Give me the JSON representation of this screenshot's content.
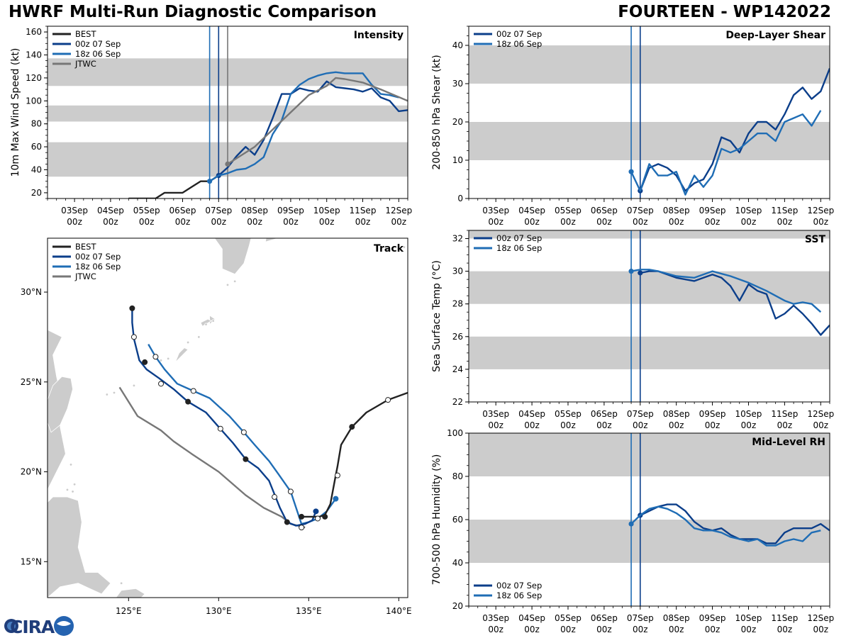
{
  "header": {
    "title_left": "HWRF Multi-Run Diagnostic Comparison",
    "title_right": "FOURTEEN - WP142022"
  },
  "colors": {
    "best": "#222222",
    "run00z": "#0b3e8a",
    "run18z": "#1f6db5",
    "jtwc": "#777777",
    "band": "#cccccc",
    "land": "#cccccc"
  },
  "time_axis": {
    "tick_labels": [
      "03Sep",
      "04Sep",
      "05Sep",
      "06Sep",
      "07Sep",
      "08Sep",
      "09Sep",
      "10Sep",
      "11Sep",
      "12Sep"
    ],
    "tick_sublabel": "00z"
  },
  "chart_data": [
    {
      "id": "intensity",
      "type": "line",
      "title": "Intensity",
      "ylabel": "10m Max Wind Speed (kt)",
      "ylim": [
        15,
        165
      ],
      "yticks": [
        20,
        40,
        60,
        80,
        100,
        120,
        140,
        160
      ],
      "xlim_days": [
        -4.75,
        5.25
      ],
      "bands": [
        [
          34,
          64
        ],
        [
          82,
          96
        ],
        [
          113,
          137
        ]
      ],
      "vlines": [
        {
          "day": -0.25,
          "series": "18z 06 Sep"
        },
        {
          "day": 0,
          "series": "00z 07 Sep"
        },
        {
          "day": 0.25,
          "series": "JTWC"
        }
      ],
      "legend": [
        "BEST",
        "00z 07 Sep",
        "18z 06 Sep",
        "JTWC"
      ],
      "series": [
        {
          "name": "BEST",
          "color_key": "best",
          "x": [
            -2.5,
            -2.25,
            -2,
            -1.75,
            -1.5,
            -1.25,
            -1,
            -0.75,
            -0.5,
            -0.25,
            0
          ],
          "y": [
            15,
            15,
            15,
            15,
            20,
            20,
            20,
            25,
            30,
            30,
            35
          ]
        },
        {
          "name": "00z 07 Sep",
          "color_key": "run00z",
          "marker_day": 0,
          "x": [
            0,
            0.25,
            0.5,
            0.75,
            1,
            1.25,
            1.5,
            1.75,
            2,
            2.25,
            2.5,
            2.75,
            3,
            3.25,
            3.5,
            3.75,
            4,
            4.25,
            4.5,
            4.75,
            5,
            5.25
          ],
          "y": [
            35,
            42,
            52,
            60,
            53,
            66,
            85,
            106,
            106,
            111,
            109,
            108,
            117,
            112,
            111,
            110,
            108,
            111,
            103,
            100,
            91,
            92
          ]
        },
        {
          "name": "18z 06 Sep",
          "color_key": "run18z",
          "marker_day": -0.25,
          "x": [
            -0.25,
            0,
            0.25,
            0.5,
            0.75,
            1,
            1.25,
            1.5,
            1.75,
            2,
            2.25,
            2.5,
            2.75,
            3,
            3.25,
            3.5,
            3.75,
            4,
            4.25,
            4.5,
            4.75,
            5
          ],
          "y": [
            30,
            35,
            37,
            40,
            41,
            45,
            51,
            71,
            83,
            106,
            114,
            119,
            122,
            124,
            125,
            124,
            124,
            124,
            114,
            106,
            105,
            103
          ]
        },
        {
          "name": "JTWC",
          "color_key": "jtwc",
          "marker_day": 0.25,
          "x": [
            0.25,
            0.5,
            1,
            1.5,
            2,
            2.5,
            3,
            3.25,
            3.5,
            4,
            4.5,
            5.25
          ],
          "y": [
            45,
            50,
            60,
            75,
            90,
            105,
            113,
            120,
            119,
            116,
            110,
            100
          ]
        }
      ]
    },
    {
      "id": "shear",
      "type": "line",
      "title": "Deep-Layer Shear",
      "ylabel": "200-850 hPa Shear (kt)",
      "ylim": [
        0,
        45
      ],
      "yticks": [
        0,
        10,
        20,
        30,
        40
      ],
      "xlim_days": [
        -4.75,
        5.25
      ],
      "bands": [
        [
          10,
          20
        ],
        [
          30,
          40
        ]
      ],
      "vlines": [
        {
          "day": -0.25,
          "series": "18z 06 Sep"
        },
        {
          "day": 0,
          "series": "00z 07 Sep"
        }
      ],
      "legend": [
        "00z 07 Sep",
        "18z 06 Sep"
      ],
      "series": [
        {
          "name": "00z 07 Sep",
          "color_key": "run00z",
          "marker_day": 0,
          "x": [
            0,
            0.25,
            0.5,
            0.75,
            1,
            1.25,
            1.5,
            1.75,
            2,
            2.25,
            2.5,
            2.75,
            3,
            3.25,
            3.5,
            3.75,
            4,
            4.25,
            4.5,
            4.75,
            5,
            5.25
          ],
          "y": [
            2,
            8,
            9,
            8,
            6,
            2,
            4,
            5,
            9,
            16,
            15,
            12,
            17,
            20,
            20,
            18,
            22,
            27,
            29,
            26,
            28,
            34
          ]
        },
        {
          "name": "18z 06 Sep",
          "color_key": "run18z",
          "marker_day": -0.25,
          "x": [
            -0.25,
            0,
            0.25,
            0.5,
            0.75,
            1,
            1.25,
            1.5,
            1.75,
            2,
            2.25,
            2.5,
            2.75,
            3,
            3.25,
            3.5,
            3.75,
            4,
            4.25,
            4.5,
            4.75,
            5
          ],
          "y": [
            7,
            2,
            9,
            6,
            6,
            7,
            1,
            6,
            3,
            6,
            13,
            12,
            13,
            15,
            17,
            17,
            15,
            20,
            21,
            22,
            19,
            23
          ]
        }
      ]
    },
    {
      "id": "sst",
      "type": "line",
      "title": "SST",
      "ylabel": "Sea Surface Temp (°C)",
      "ylim": [
        22,
        32.5
      ],
      "yticks": [
        22,
        24,
        26,
        28,
        30,
        32
      ],
      "xlim_days": [
        -4.75,
        5.25
      ],
      "bands": [
        [
          24,
          26
        ],
        [
          28,
          30
        ],
        [
          32,
          32.5
        ]
      ],
      "vlines": [
        {
          "day": -0.25,
          "series": "18z 06 Sep"
        },
        {
          "day": 0,
          "series": "00z 07 Sep"
        }
      ],
      "legend": [
        "00z 07 Sep",
        "18z 06 Sep"
      ],
      "series": [
        {
          "name": "00z 07 Sep",
          "color_key": "run00z",
          "marker_day": 0,
          "x": [
            0,
            0.25,
            0.5,
            1,
            1.5,
            2,
            2.25,
            2.5,
            2.75,
            3,
            3.25,
            3.5,
            3.75,
            4,
            4.25,
            4.5,
            4.75,
            5,
            5.25
          ],
          "y": [
            29.9,
            30.0,
            30.0,
            29.6,
            29.4,
            29.8,
            29.6,
            29.1,
            28.2,
            29.2,
            28.8,
            28.6,
            27.1,
            27.4,
            27.9,
            27.4,
            26.8,
            26.1,
            26.7
          ]
        },
        {
          "name": "18z 06 Sep",
          "color_key": "run18z",
          "marker_day": -0.25,
          "x": [
            -0.25,
            0,
            0.25,
            0.5,
            1,
            1.5,
            2,
            2.5,
            3,
            3.5,
            4,
            4.25,
            4.5,
            4.75,
            5
          ],
          "y": [
            30.0,
            30.1,
            30.1,
            30.0,
            29.7,
            29.6,
            30.0,
            29.7,
            29.3,
            28.8,
            28.2,
            28.0,
            28.1,
            28.0,
            27.5
          ]
        }
      ]
    },
    {
      "id": "rh",
      "type": "line",
      "title": "Mid-Level RH",
      "ylabel": "700-500 hPa Humidity (%)",
      "ylim": [
        20,
        100
      ],
      "yticks": [
        20,
        40,
        60,
        80,
        100
      ],
      "xlim_days": [
        -4.75,
        5.25
      ],
      "bands": [
        [
          40,
          60
        ],
        [
          80,
          100
        ]
      ],
      "vlines": [
        {
          "day": -0.25,
          "series": "18z 06 Sep"
        },
        {
          "day": 0,
          "series": "00z 07 Sep"
        }
      ],
      "legend": [
        "00z 07 Sep",
        "18z 06 Sep"
      ],
      "series": [
        {
          "name": "00z 07 Sep",
          "color_key": "run00z",
          "marker_day": 0,
          "x": [
            0,
            0.25,
            0.5,
            0.75,
            1,
            1.25,
            1.5,
            1.75,
            2,
            2.25,
            2.5,
            2.75,
            3,
            3.25,
            3.5,
            3.75,
            4,
            4.25,
            4.5,
            4.75,
            5,
            5.25
          ],
          "y": [
            62,
            64,
            66,
            67,
            67,
            64,
            59,
            56,
            55,
            56,
            53,
            51,
            51,
            51,
            49,
            49,
            54,
            56,
            56,
            56,
            58,
            55
          ]
        },
        {
          "name": "18z 06 Sep",
          "color_key": "run18z",
          "marker_day": -0.25,
          "x": [
            -0.25,
            0,
            0.25,
            0.5,
            0.75,
            1,
            1.25,
            1.5,
            1.75,
            2,
            2.25,
            2.5,
            2.75,
            3,
            3.25,
            3.5,
            3.75,
            4,
            4.25,
            4.5,
            4.75,
            5
          ],
          "y": [
            58,
            62,
            65,
            66,
            65,
            63,
            60,
            56,
            55,
            55,
            54,
            52,
            51,
            50,
            51,
            48,
            48,
            50,
            51,
            50,
            54,
            55
          ]
        }
      ]
    },
    {
      "id": "track",
      "type": "scatter",
      "title": "Track",
      "xlim": [
        120.5,
        140.5
      ],
      "ylim": [
        13,
        33
      ],
      "xticks": [
        125,
        130,
        135,
        140
      ],
      "xtick_labels": [
        "125°E",
        "130°E",
        "135°E",
        "140°E"
      ],
      "yticks": [
        15,
        20,
        25,
        30
      ],
      "ytick_labels": [
        "15°N",
        "20°N",
        "25°N",
        "30°N"
      ],
      "legend": [
        "BEST",
        "00z 07 Sep",
        "18z 06 Sep",
        "JTWC"
      ],
      "series": [
        {
          "name": "BEST",
          "color_key": "best",
          "lon": [
            140.5,
            139.4,
            138.2,
            137.4,
            136.8,
            136.6,
            136.5,
            136.2,
            135.9,
            135.6,
            135.2,
            134.6
          ],
          "lat": [
            24.4,
            24.0,
            23.3,
            22.5,
            21.5,
            20.3,
            19.8,
            18.2,
            17.6,
            17.5,
            17.5,
            17.5
          ],
          "markers": [
            {
              "lon": 139.4,
              "lat": 24.0,
              "fill": "white"
            },
            {
              "lon": 137.4,
              "lat": 22.5,
              "fill": "solid"
            },
            {
              "lon": 136.6,
              "lat": 19.8,
              "fill": "white"
            },
            {
              "lon": 135.9,
              "lat": 17.5,
              "fill": "solid"
            },
            {
              "lon": 134.6,
              "lat": 17.5,
              "fill": "solid"
            }
          ]
        },
        {
          "name": "00z 07 Sep",
          "color_key": "run00z",
          "lon": [
            135.4,
            135.2,
            134.8,
            134.3,
            133.8,
            133.4,
            132.8,
            132.2,
            131.5,
            130.8,
            130.0,
            129.3,
            128.3,
            127.5,
            126.7,
            126.0,
            125.6,
            125.3,
            125.2,
            125.2
          ],
          "lat": [
            17.8,
            17.3,
            17.1,
            17.0,
            17.2,
            18.0,
            19.5,
            20.2,
            20.7,
            21.6,
            22.5,
            23.3,
            23.9,
            24.6,
            25.2,
            25.7,
            26.2,
            27.4,
            28.3,
            29.1
          ],
          "markers": [
            {
              "lon": 135.4,
              "lat": 17.8,
              "fill": "color"
            },
            {
              "lon": 134.6,
              "lat": 16.9,
              "fill": "white"
            },
            {
              "lon": 133.8,
              "lat": 17.2,
              "fill": "solid"
            },
            {
              "lon": 133.1,
              "lat": 18.6,
              "fill": "white"
            },
            {
              "lon": 131.5,
              "lat": 20.7,
              "fill": "solid"
            },
            {
              "lon": 130.1,
              "lat": 22.4,
              "fill": "white"
            },
            {
              "lon": 128.3,
              "lat": 23.9,
              "fill": "solid"
            },
            {
              "lon": 126.8,
              "lat": 24.9,
              "fill": "white"
            },
            {
              "lon": 125.9,
              "lat": 26.1,
              "fill": "solid"
            },
            {
              "lon": 125.3,
              "lat": 27.5,
              "fill": "white"
            },
            {
              "lon": 125.2,
              "lat": 29.1,
              "fill": "solid"
            }
          ]
        },
        {
          "name": "18z 06 Sep",
          "color_key": "run18z",
          "lon": [
            136.5,
            136.0,
            135.5,
            135.0,
            134.6,
            134.3,
            134.0,
            133.3,
            132.8,
            132.0,
            131.4,
            130.6,
            129.5,
            128.6,
            127.7,
            127.0,
            126.5,
            126.1
          ],
          "lat": [
            18.5,
            17.8,
            17.4,
            17.2,
            17.1,
            18.0,
            18.9,
            19.9,
            20.6,
            21.5,
            22.2,
            23.1,
            24.1,
            24.5,
            24.9,
            25.7,
            26.4,
            27.1
          ],
          "markers": [
            {
              "lon": 136.5,
              "lat": 18.5,
              "fill": "color"
            },
            {
              "lon": 135.5,
              "lat": 17.4,
              "fill": "white"
            },
            {
              "lon": 134.0,
              "lat": 18.9,
              "fill": "white"
            },
            {
              "lon": 131.4,
              "lat": 22.2,
              "fill": "white"
            },
            {
              "lon": 128.6,
              "lat": 24.5,
              "fill": "white"
            },
            {
              "lon": 126.5,
              "lat": 26.4,
              "fill": "white"
            }
          ]
        },
        {
          "name": "JTWC",
          "color_key": "jtwc",
          "lon": [
            134.8,
            134.0,
            133.5,
            132.5,
            131.5,
            130.0,
            128.5,
            127.5,
            126.8,
            125.5,
            124.5
          ],
          "lat": [
            16.9,
            17.1,
            17.5,
            18.0,
            18.7,
            20.0,
            21.0,
            21.7,
            22.3,
            23.1,
            24.7
          ],
          "markers": []
        }
      ]
    }
  ],
  "logo": {
    "text": "CIRA"
  }
}
